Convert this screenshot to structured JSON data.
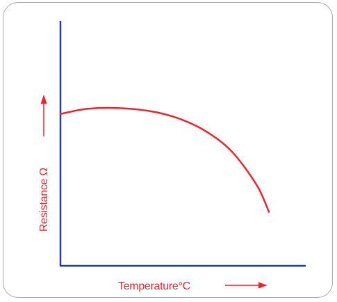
{
  "chart_data": {
    "type": "line",
    "title": "",
    "xlabel": "Temperature°C",
    "ylabel": "Resistance Ω",
    "x": [
      0,
      10,
      20,
      30,
      40,
      50,
      60,
      70,
      80,
      85
    ],
    "series": [
      {
        "values": [
          62,
          64,
          64.5,
          64,
          62.5,
          59.5,
          54.5,
          46.5,
          33,
          22
        ]
      }
    ],
    "xlim": [
      0,
      100
    ],
    "ylim": [
      0,
      100
    ],
    "grid": false,
    "colors": {
      "axes": "#1f3f9a",
      "curve": "#e8262e",
      "label": "#e8262e",
      "frame": "#a9a9a9"
    }
  }
}
